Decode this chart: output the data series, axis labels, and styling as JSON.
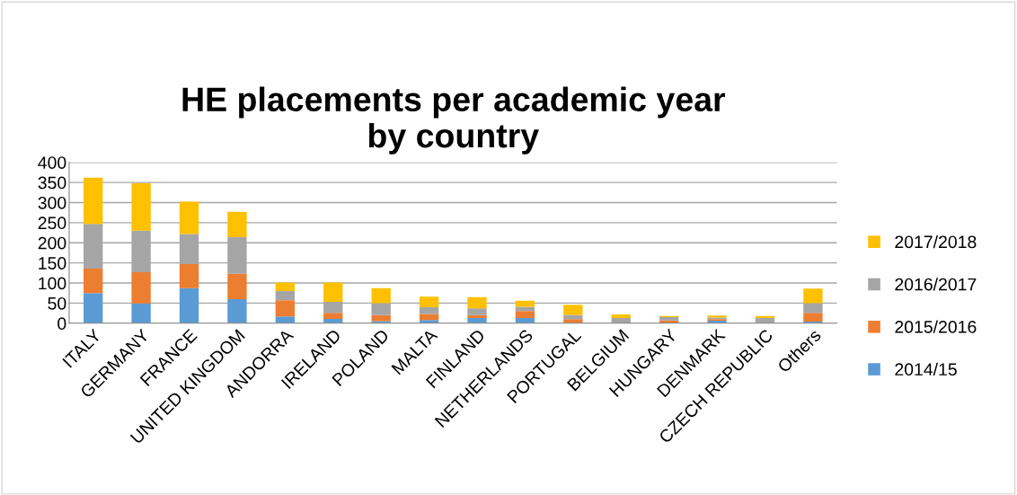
{
  "chart_data": {
    "type": "bar",
    "stacked": true,
    "title": "HE placements per academic year\nby country",
    "categories": [
      "ITALY",
      "GERMANY",
      "FRANCE",
      "UNITED KINGDOM",
      "ANDORRA",
      "IRELAND",
      "POLAND",
      "MALTA",
      "FINLAND",
      "NETHERLANDS",
      "PORTUGAL",
      "BELGIUM",
      "HUNGARY",
      "DENMARK",
      "CZECH REPUBLIC",
      "Others"
    ],
    "series": [
      {
        "name": "2014/15",
        "color": "#5b9bd5",
        "values": [
          75,
          49,
          87,
          60,
          17,
          11,
          5,
          8,
          13,
          13,
          0,
          0,
          0,
          6,
          0,
          4
        ]
      },
      {
        "name": "2015/2016",
        "color": "#ed7d31",
        "values": [
          61,
          78,
          60,
          63,
          40,
          15,
          15,
          15,
          7,
          17,
          10,
          0,
          7,
          4,
          0,
          22
        ]
      },
      {
        "name": "2016/2017",
        "color": "#a5a5a5",
        "values": [
          111,
          103,
          75,
          91,
          23,
          27,
          30,
          17,
          17,
          11,
          11,
          13,
          8,
          4,
          13,
          24
        ]
      },
      {
        "name": "2017/2018",
        "color": "#ffc000",
        "values": [
          115,
          118,
          80,
          63,
          21,
          48,
          37,
          26,
          28,
          15,
          25,
          9,
          3,
          5,
          5,
          36
        ]
      }
    ],
    "ylim": [
      0,
      400
    ],
    "yticks": [
      0,
      50,
      100,
      150,
      200,
      250,
      300,
      350,
      400
    ],
    "grid": "y",
    "legend": "right"
  }
}
